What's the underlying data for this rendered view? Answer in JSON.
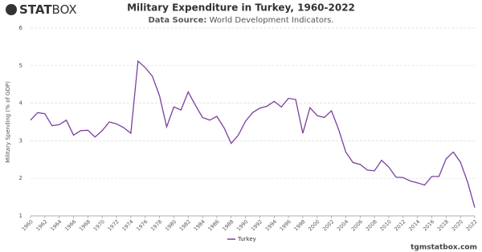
{
  "logo": {
    "bold": "STAT",
    "light": "BOX"
  },
  "footer": "tgmstatbox.com",
  "chart_data": {
    "type": "line",
    "title": "Military Expenditure in Turkey, 1960-2022",
    "source_label": "Data Source:",
    "source": "World Development Indicators.",
    "y_label": "Military Spending (% of GDP)",
    "x": [
      1960,
      1961,
      1962,
      1963,
      1964,
      1965,
      1966,
      1967,
      1968,
      1969,
      1970,
      1971,
      1972,
      1973,
      1974,
      1975,
      1976,
      1977,
      1978,
      1979,
      1980,
      1981,
      1982,
      1983,
      1984,
      1985,
      1986,
      1987,
      1988,
      1989,
      1990,
      1991,
      1992,
      1993,
      1994,
      1995,
      1996,
      1997,
      1998,
      1999,
      2000,
      2001,
      2002,
      2003,
      2004,
      2005,
      2006,
      2007,
      2008,
      2009,
      2010,
      2011,
      2012,
      2013,
      2014,
      2015,
      2016,
      2017,
      2018,
      2019,
      2020,
      2021,
      2022
    ],
    "series": [
      {
        "name": "Turkey",
        "color": "#7b3fa0",
        "values": [
          3.55,
          3.75,
          3.72,
          3.4,
          3.43,
          3.55,
          3.15,
          3.27,
          3.28,
          3.1,
          3.27,
          3.5,
          3.45,
          3.35,
          3.2,
          5.12,
          4.95,
          4.72,
          4.2,
          3.37,
          3.9,
          3.82,
          4.3,
          3.95,
          3.62,
          3.55,
          3.65,
          3.35,
          2.93,
          3.15,
          3.52,
          3.75,
          3.87,
          3.92,
          4.05,
          3.9,
          4.13,
          4.1,
          3.2,
          3.88,
          3.67,
          3.62,
          3.8,
          3.3,
          2.7,
          2.42,
          2.37,
          2.22,
          2.2,
          2.48,
          2.3,
          2.03,
          2.02,
          1.93,
          1.88,
          1.82,
          2.05,
          2.05,
          2.52,
          2.7,
          2.43,
          1.9,
          1.22
        ]
      }
    ],
    "xlim": [
      1960,
      2022
    ],
    "xticks": [
      1960,
      1962,
      1964,
      1966,
      1968,
      1970,
      1972,
      1974,
      1976,
      1978,
      1980,
      1982,
      1984,
      1986,
      1988,
      1990,
      1992,
      1994,
      1996,
      1998,
      2000,
      2002,
      2004,
      2006,
      2008,
      2010,
      2012,
      2014,
      2016,
      2018,
      2020,
      2022
    ],
    "ylim": [
      1,
      6
    ],
    "yticks": [
      1,
      2,
      3,
      4,
      5,
      6
    ],
    "grid": true
  }
}
